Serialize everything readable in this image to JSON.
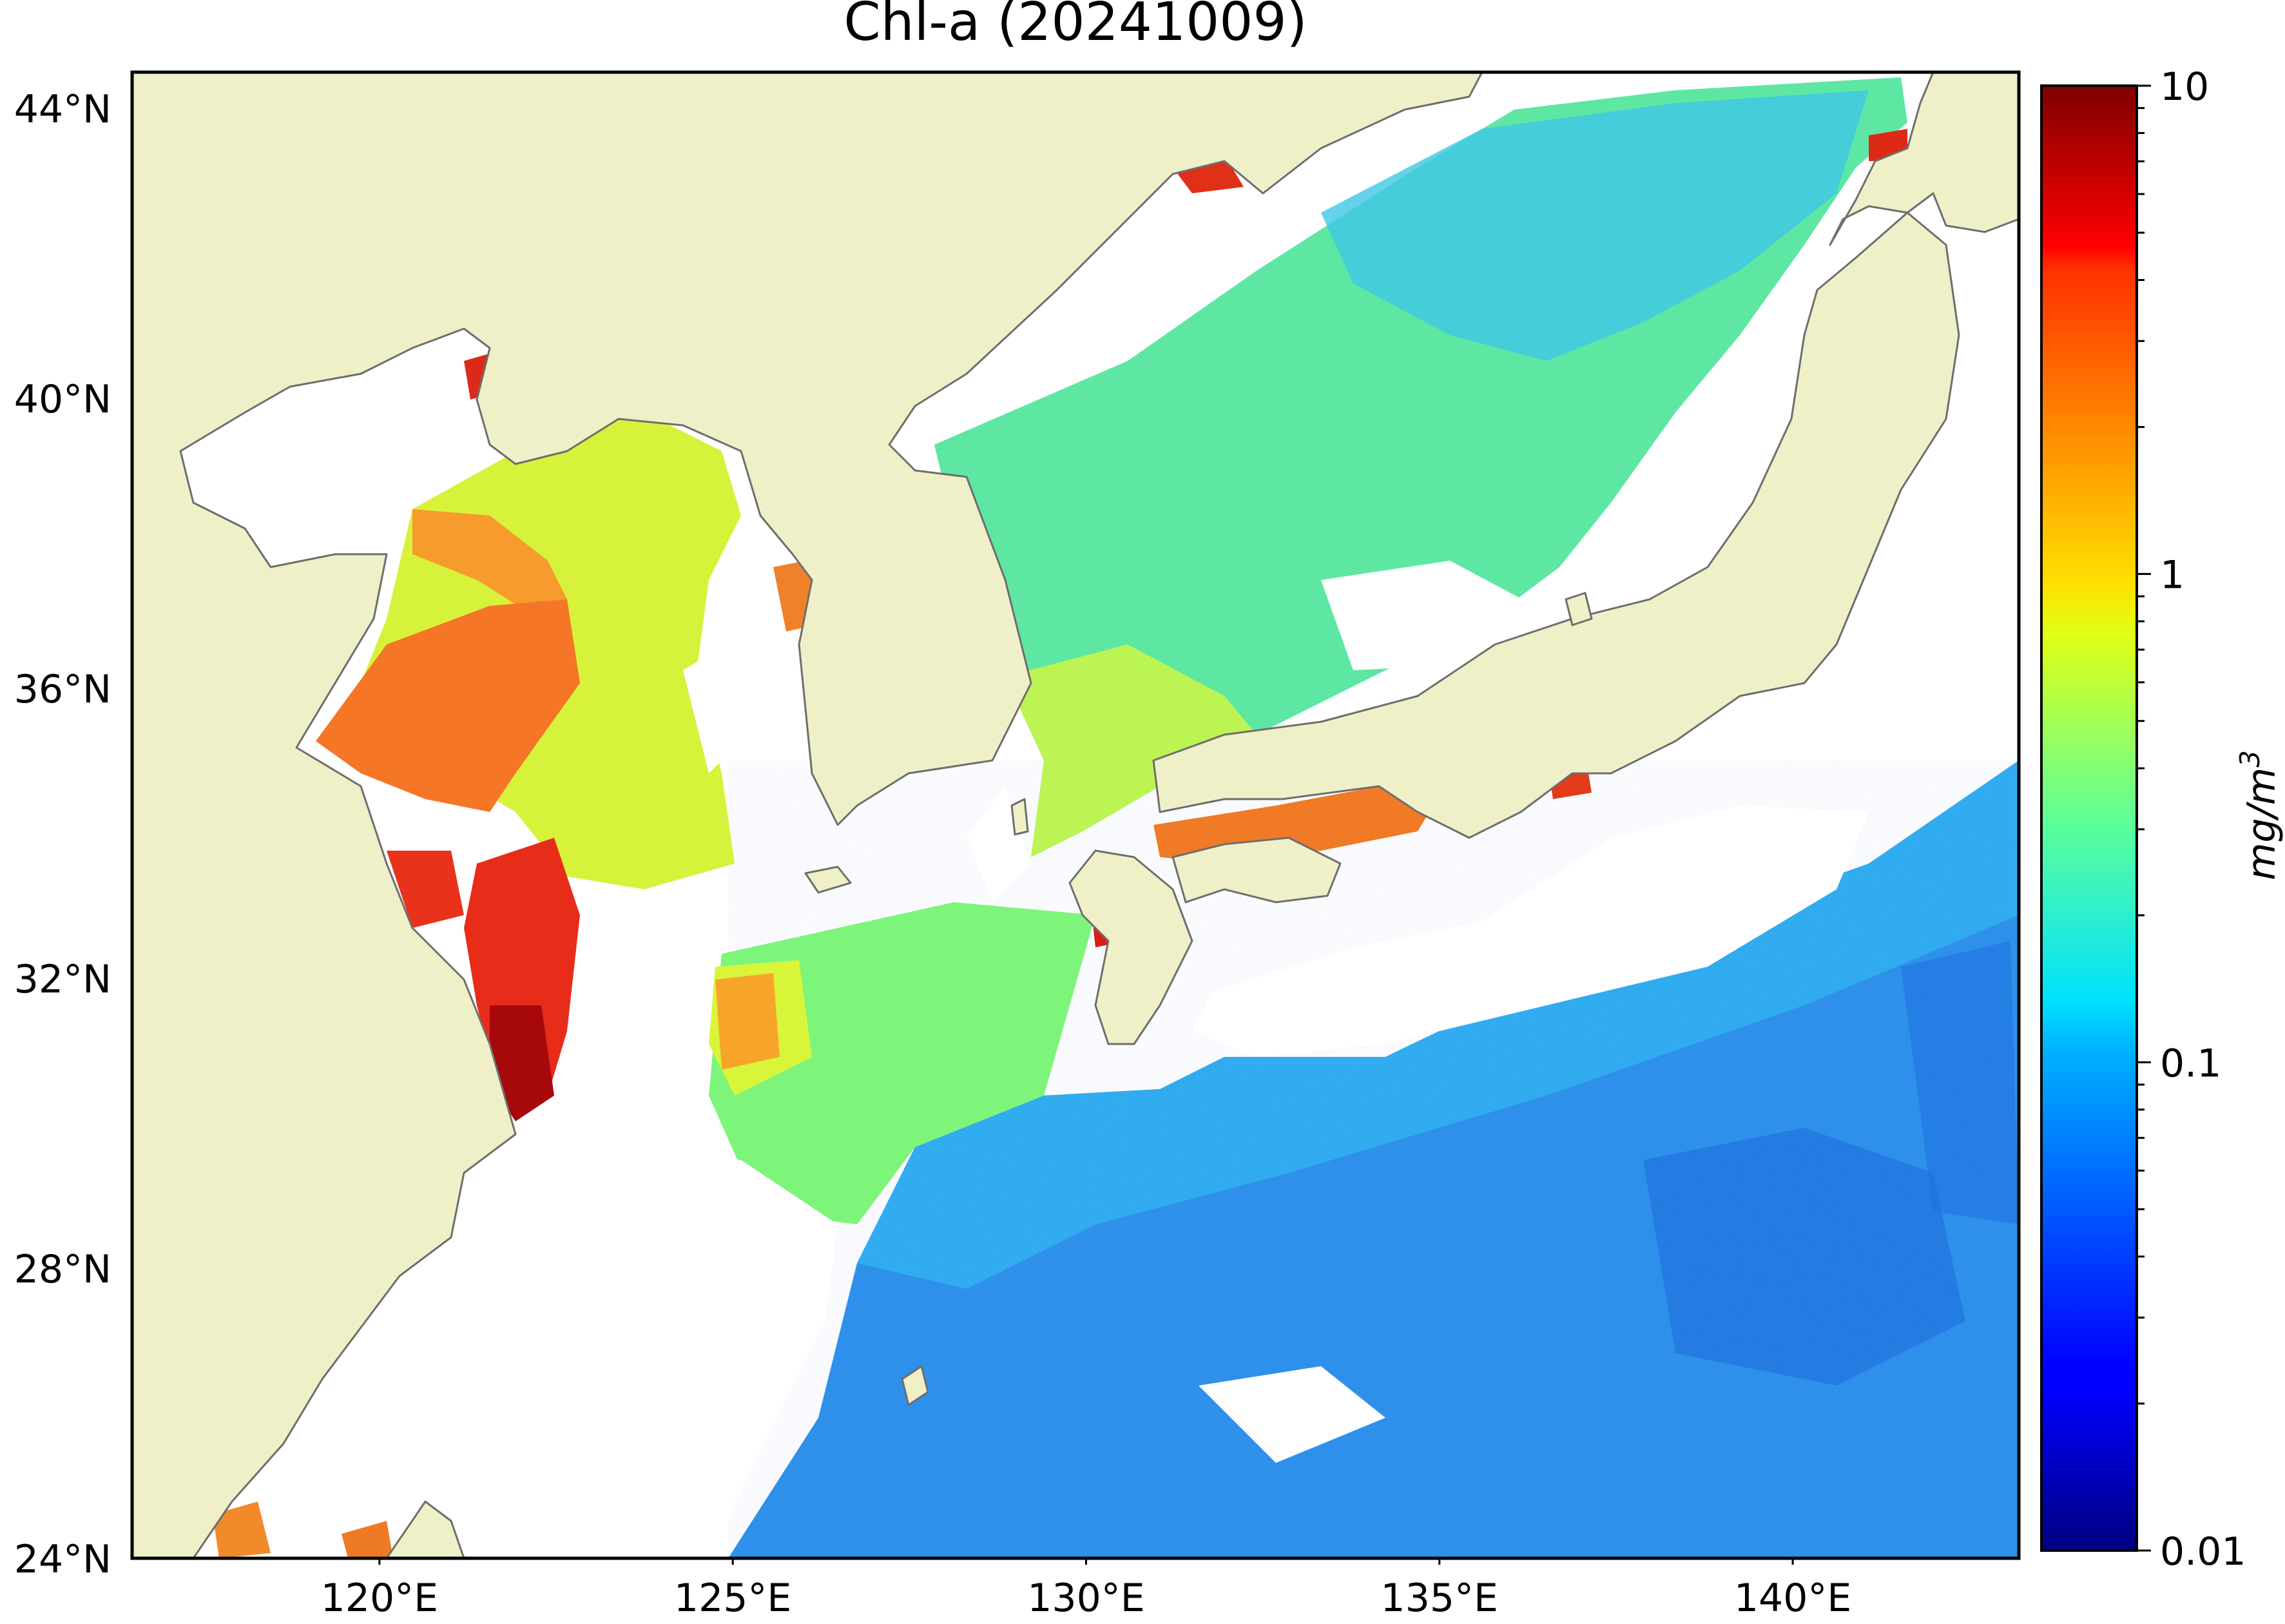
{
  "map": {
    "title": "Chl-a (20241009)",
    "lon_range": [
      116.5,
      143.2
    ],
    "lat_range": [
      24,
      44.5
    ],
    "lon_ticks": [
      {
        "value": 120,
        "label": "120°E"
      },
      {
        "value": 125,
        "label": "125°E"
      },
      {
        "value": 130,
        "label": "130°E"
      },
      {
        "value": 135,
        "label": "135°E"
      },
      {
        "value": 140,
        "label": "140°E"
      }
    ],
    "lat_ticks": [
      {
        "value": 44,
        "label": "44°N"
      },
      {
        "value": 40,
        "label": "40°N"
      },
      {
        "value": 36,
        "label": "36°N"
      },
      {
        "value": 32,
        "label": "32°N"
      },
      {
        "value": 28,
        "label": "28°N"
      },
      {
        "value": 24,
        "label": "24°N"
      }
    ],
    "colors": {
      "land": "#f0f0c8",
      "coastline": "#6e6e6e",
      "no_data": "#ffffff"
    }
  },
  "colorbar": {
    "label": "mg/m",
    "label_superscript": "3",
    "scale": "log",
    "colormap": "jet",
    "range": [
      0.01,
      10
    ],
    "ticks": [
      {
        "value": 10,
        "label": "10"
      },
      {
        "value": 1,
        "label": "1"
      },
      {
        "value": 0.1,
        "label": "0.1"
      },
      {
        "value": 0.01,
        "label": "0.01"
      }
    ]
  }
}
